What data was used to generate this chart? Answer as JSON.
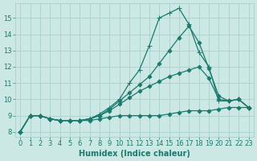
{
  "xlabel": "Humidex (Indice chaleur)",
  "xlim": [
    -0.5,
    23.5
  ],
  "ylim": [
    7.7,
    15.9
  ],
  "xticks": [
    0,
    1,
    2,
    3,
    4,
    5,
    6,
    7,
    8,
    9,
    10,
    11,
    12,
    13,
    14,
    15,
    16,
    17,
    18,
    19,
    20,
    21,
    22,
    23
  ],
  "yticks": [
    8,
    9,
    10,
    11,
    12,
    13,
    14,
    15
  ],
  "bg_color": "#cce8e4",
  "line_color": "#1a7a6e",
  "grid_color": "#aacfcc",
  "lines": [
    {
      "x": [
        0,
        1,
        2,
        3,
        4,
        5,
        6,
        7,
        8,
        9,
        10,
        11,
        12,
        13,
        14,
        15,
        16,
        17,
        18,
        19,
        20,
        21,
        22,
        23
      ],
      "y": [
        8.0,
        9.0,
        9.0,
        8.8,
        8.7,
        8.7,
        8.7,
        8.8,
        9.1,
        9.5,
        10.0,
        11.0,
        11.8,
        13.3,
        15.0,
        15.3,
        15.6,
        14.6,
        12.9,
        12.0,
        9.9,
        9.9,
        10.0,
        9.5
      ],
      "marker": "+"
    },
    {
      "x": [
        0,
        1,
        2,
        3,
        4,
        5,
        6,
        7,
        8,
        9,
        10,
        11,
        12,
        13,
        14,
        15,
        16,
        17,
        18,
        19,
        20,
        21,
        22,
        23
      ],
      "y": [
        8.0,
        9.0,
        9.0,
        8.8,
        8.7,
        8.7,
        8.7,
        8.8,
        9.0,
        9.4,
        9.9,
        10.4,
        10.9,
        11.4,
        12.2,
        13.0,
        13.8,
        14.5,
        13.5,
        11.9,
        10.2,
        9.9,
        10.0,
        9.5
      ],
      "marker": "D"
    },
    {
      "x": [
        0,
        1,
        2,
        3,
        4,
        5,
        6,
        7,
        8,
        9,
        10,
        11,
        12,
        13,
        14,
        15,
        16,
        17,
        18,
        19,
        20,
        21,
        22,
        23
      ],
      "y": [
        8.0,
        9.0,
        9.0,
        8.8,
        8.7,
        8.7,
        8.7,
        8.8,
        9.0,
        9.3,
        9.7,
        10.1,
        10.5,
        10.8,
        11.1,
        11.4,
        11.6,
        11.8,
        12.0,
        11.3,
        10.0,
        9.9,
        10.0,
        9.5
      ],
      "marker": "D"
    },
    {
      "x": [
        0,
        1,
        2,
        3,
        4,
        5,
        6,
        7,
        8,
        9,
        10,
        11,
        12,
        13,
        14,
        15,
        16,
        17,
        18,
        19,
        20,
        21,
        22,
        23
      ],
      "y": [
        8.0,
        9.0,
        9.0,
        8.8,
        8.7,
        8.7,
        8.7,
        8.7,
        8.8,
        8.9,
        9.0,
        9.0,
        9.0,
        9.0,
        9.0,
        9.1,
        9.2,
        9.3,
        9.3,
        9.3,
        9.4,
        9.5,
        9.5,
        9.5
      ],
      "marker": "D"
    }
  ],
  "marker_size": 2.5,
  "linewidth": 0.9,
  "font_size_label": 7,
  "font_size_tick": 6
}
